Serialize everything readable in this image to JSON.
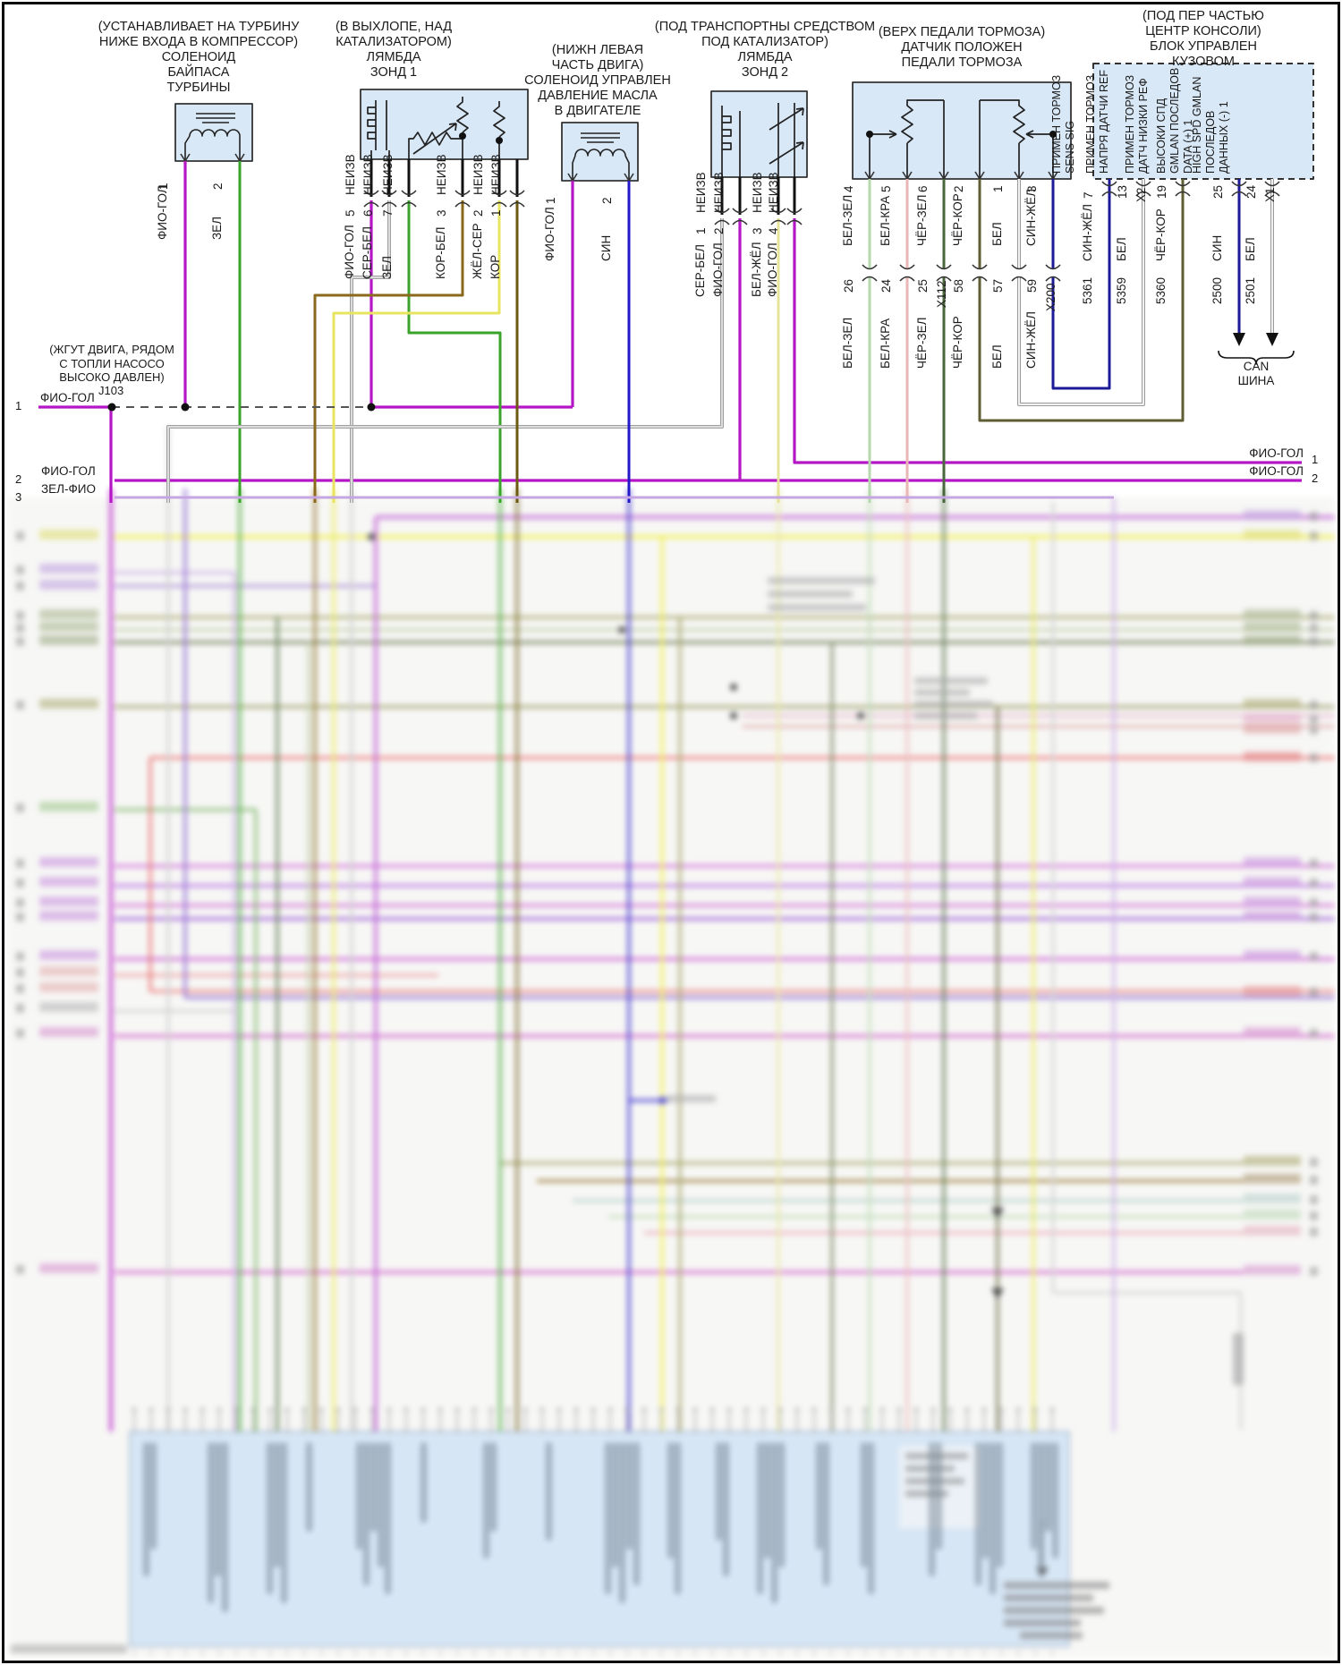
{
  "diagram": {
    "language": "ru",
    "kind": "automotive wiring diagram",
    "wire_colors_hex": {
      "ФИО-ГОЛ": "#b517c6",
      "ЗЕЛ": "#3aa32a",
      "СЕР-БЕЛ": "#c9c9c9",
      "КОР-БЕЛ": "#8a681c",
      "ЖЁЛ-СЕР": "#eeea7a",
      "КОР": "#6c5a12",
      "СИН": "#2318c8",
      "БЕЛ-ЖЁЛ": "#ededaf",
      "БЕЛ-ЗЕЛ": "#b7d8ae",
      "БЕЛ-КРА": "#e9b6b6",
      "ЧЁР-ЗЕЛ": "#49663c",
      "ЧЁР-КОР": "#5f5d33",
      "БЕЛ": "#f1f1f1",
      "СИН-ЖЁЛ": "#1c1a96",
      "ЗЕЛ-ФИО": "#c5a6e3",
      "ЖЁЛ": "#f0ee30"
    },
    "box_fill": "#d9e8f7"
  },
  "components": {
    "turbo_solenoid": {
      "location": "(УСТАНАВЛИВАЕТ НА ТУРБИНУ\nНИЖЕ ВХОДА В КОМПРЕССОР)",
      "name": "СОЛЕНОИД\nБАЙПАСА\nТУРБИНЫ",
      "pins": [
        {
          "num": "1",
          "wire": "ФИО-ГОЛ"
        },
        {
          "num": "2",
          "wire": "ЗЕЛ"
        }
      ]
    },
    "lambda1": {
      "location": "(В ВЫХЛОПЕ, НАД\nКАТАЛИЗАТОРОМ)",
      "name": "ЛЯМБДА\nЗОНД 1",
      "pins": [
        {
          "num": "5",
          "wire": "ФИО-ГОЛ",
          "tag": "НЕИЗВ"
        },
        {
          "num": "6",
          "wire": "СЕР-БЕЛ",
          "tag": "НЕИЗВ"
        },
        {
          "num": "7",
          "wire": "ЗЕЛ",
          "tag": "НЕИЗВ"
        },
        {
          "num": "3",
          "wire": "КОР-БЕЛ",
          "tag": "НЕИЗВ"
        },
        {
          "num": "2",
          "wire": "ЖЁЛ-СЕР",
          "tag": "НЕИЗВ"
        },
        {
          "num": "1",
          "wire": "КОР",
          "tag": "НЕИЗВ"
        }
      ]
    },
    "oil_solenoid": {
      "location": "(НИЖН ЛЕВАЯ\nЧАСТЬ ДВИГА)",
      "name": "СОЛЕНОИД УПРАВЛЕН\nДАВЛЕНИЕ МАСЛА\nВ ДВИГАТЕЛЕ",
      "pins": [
        {
          "num": "1",
          "wire": "ФИО-ГОЛ"
        },
        {
          "num": "2",
          "wire": "СИН"
        }
      ]
    },
    "lambda2": {
      "location": "(ПОД ТРАНСПОРТНЫ СРЕДСТВОМ\nПОД КАТАЛИЗАТОР)",
      "name": "ЛЯМБДА\nЗОНД 2",
      "pins": [
        {
          "num": "1",
          "wire": "СЕР-БЕЛ",
          "tag": "НЕИЗВ"
        },
        {
          "num": "2",
          "wire": "ФИО-ГОЛ",
          "tag": "НЕИЗВ"
        },
        {
          "num": "3",
          "wire": "БЕЛ-ЖЁЛ",
          "tag": "НЕИЗВ"
        },
        {
          "num": "4",
          "wire": "ФИО-ГОЛ",
          "tag": "НЕИЗВ"
        }
      ]
    },
    "brake_pedal_sensor": {
      "location": "(ВЕРХ ПЕДАЛИ ТОРМОЗА)",
      "name": "ДАТЧИК ПОЛОЖЕН\nПЕДАЛИ ТОРМОЗА",
      "pins": [
        {
          "num": "4",
          "wire": "БЕЛ-ЗЕЛ",
          "conn_pin": "26"
        },
        {
          "num": "5",
          "wire": "БЕЛ-КРА",
          "conn_pin": "24"
        },
        {
          "num": "6",
          "wire": "ЧЁР-ЗЕЛ",
          "conn_pin": "25"
        },
        {
          "num": "2",
          "wire": "ЧЁР-КОР",
          "conn_pin": "58"
        },
        {
          "num": "1",
          "wire": "БЕЛ",
          "conn_pin": "57"
        },
        {
          "num": "3",
          "wire": "СИН-ЖЁЛ",
          "conn_pin": "59"
        }
      ]
    },
    "bcm": {
      "location": "(ПОД ПЕР ЧАСТЬЮ\nЦЕНТР КОНСОЛИ)",
      "name": "БЛОК УПРАВЛЕН КУЗОВОМ",
      "pins": [
        {
          "num": "7",
          "label": "ПРИМЕН ТОРМОЗ\nSENS SIG",
          "wire": "СИН-ЖЁЛ",
          "circuit": "5361"
        },
        {
          "num": "13",
          "conn": "X2",
          "label": "ПРИМЕН ТОРМОЗ\nНАПРЯ ДАТЧИ REF",
          "wire": "БЕЛ",
          "circuit": "5359"
        },
        {
          "num": "19",
          "label": "ПРИМЕН ТОРМОЗ\nДАТЧ НИЗКИ РЕФ",
          "wire": "ЧЁР-КОР",
          "circuit": "5360"
        },
        {
          "num": "25",
          "label": "ВЫСОКИ СПД\nGMLAN ПОСЛЕДОВ\nDATA (+) 1",
          "wire": "СИН",
          "circuit": "2500"
        },
        {
          "num": "24",
          "conn": "X1",
          "label": "HIGH SPD GMLAN\nПОСЛЕДОВ\nДАННЫХ (-) 1",
          "wire": "БЕЛ",
          "circuit": "2501"
        }
      ]
    }
  },
  "splice": {
    "note": "(ЖГУТ ДВИГА, РЯДОМ\nС ТОПЛИ НАСОСО\nВЫСОКО ДАВЛЕН)",
    "id": "J103",
    "wire": "ФИО-ГОЛ",
    "row": "1"
  },
  "inline_connectors": {
    "x112": "X112",
    "x200": "X200"
  },
  "rows": {
    "left": [
      {
        "num": "1",
        "wire": "ФИО-ГОЛ"
      },
      {
        "num": "2",
        "wire": "ФИО-ГОЛ"
      },
      {
        "num": "3",
        "wire": "ЗЕЛ-ФИО"
      }
    ],
    "right": [
      {
        "num": "1",
        "wire": "ФИО-ГОЛ"
      },
      {
        "num": "2",
        "wire": "ФИО-ГОЛ"
      }
    ]
  },
  "can_bus": {
    "label": "CAN\nШИНА"
  }
}
